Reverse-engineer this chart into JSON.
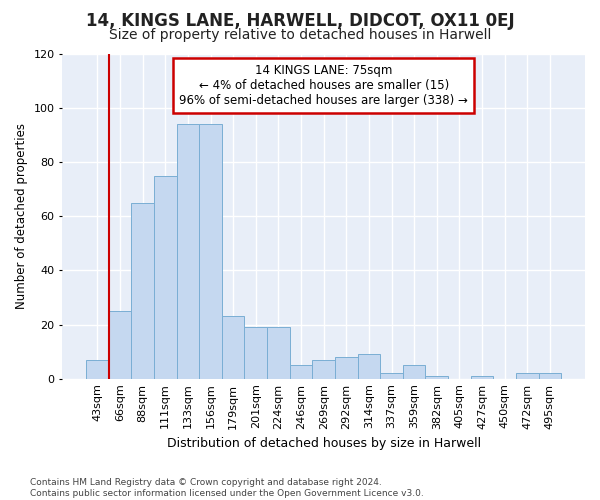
{
  "title1": "14, KINGS LANE, HARWELL, DIDCOT, OX11 0EJ",
  "title2": "Size of property relative to detached houses in Harwell",
  "xlabel": "Distribution of detached houses by size in Harwell",
  "ylabel": "Number of detached properties",
  "categories": [
    "43sqm",
    "66sqm",
    "88sqm",
    "111sqm",
    "133sqm",
    "156sqm",
    "179sqm",
    "201sqm",
    "224sqm",
    "246sqm",
    "269sqm",
    "292sqm",
    "314sqm",
    "337sqm",
    "359sqm",
    "382sqm",
    "405sqm",
    "427sqm",
    "450sqm",
    "472sqm",
    "495sqm"
  ],
  "values": [
    7,
    25,
    65,
    75,
    94,
    94,
    23,
    19,
    19,
    5,
    7,
    8,
    9,
    2,
    5,
    1,
    0,
    1,
    0,
    2,
    2
  ],
  "bar_color": "#c5d8f0",
  "bar_edge_color": "#7aaed4",
  "vline_color": "#cc0000",
  "annotation_text": "14 KINGS LANE: 75sqm\n← 4% of detached houses are smaller (15)\n96% of semi-detached houses are larger (338) →",
  "annotation_box_color": "#ffffff",
  "annotation_box_edge": "#cc0000",
  "ylim": [
    0,
    120
  ],
  "yticks": [
    0,
    20,
    40,
    60,
    80,
    100,
    120
  ],
  "footnote": "Contains HM Land Registry data © Crown copyright and database right 2024.\nContains public sector information licensed under the Open Government Licence v3.0.",
  "bg_color": "#ffffff",
  "plot_bg_color": "#e8eef8",
  "grid_color": "#ffffff",
  "title1_fontsize": 12,
  "title2_fontsize": 10
}
